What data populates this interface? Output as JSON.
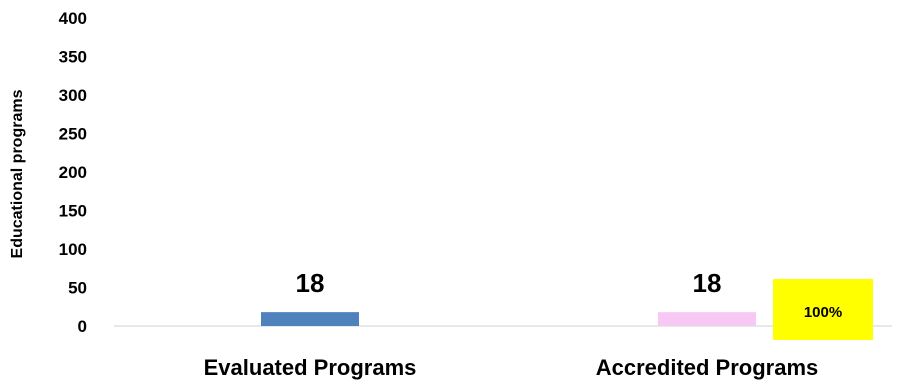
{
  "chart_data": {
    "type": "bar",
    "categories": [
      "Evaluated Programs",
      "Accredited Programs"
    ],
    "values": [
      18,
      18
    ],
    "bar_colors": [
      "#4f81bd",
      "#f8c8f4"
    ],
    "data_labels": [
      "18",
      "18"
    ],
    "ylabel": "Educational programs",
    "xlabel": "",
    "ylim": [
      0,
      400
    ],
    "yticks": [
      0,
      50,
      100,
      150,
      200,
      250,
      300,
      350,
      400
    ],
    "grid": false,
    "legend": "none",
    "annotation": {
      "text": "100%",
      "background": "#ffff00",
      "placement": "right of Accredited Programs bar"
    }
  }
}
